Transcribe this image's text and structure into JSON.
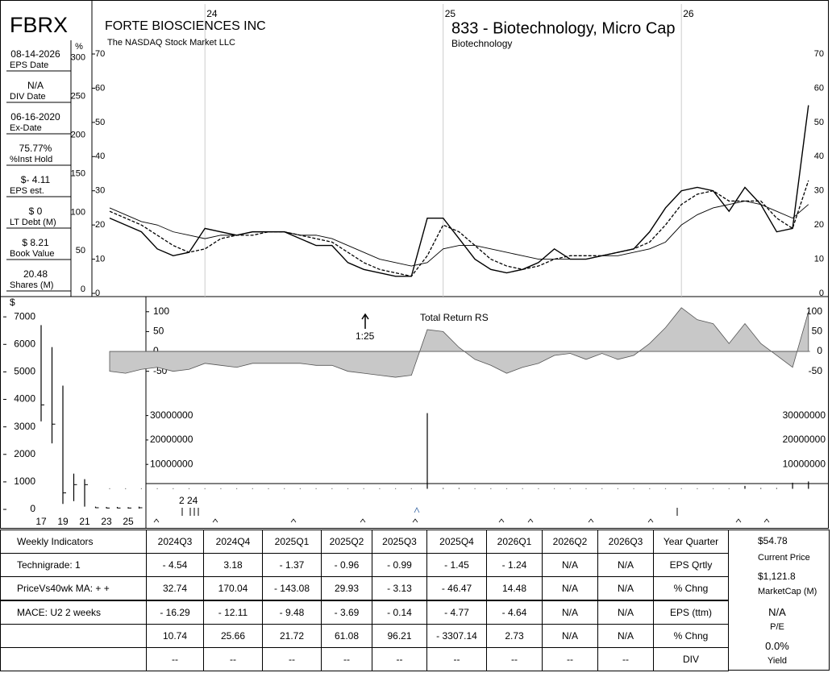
{
  "header": {
    "ticker": "FBRX",
    "company": "FORTE BIOSCIENCES INC",
    "exchange": "The NASDAQ Stock Market LLC",
    "industry": "833 - Biotechnology, Micro Cap",
    "sector": "Biotechnology"
  },
  "sidebar": [
    {
      "value": "08-14-2026",
      "label": "EPS Date"
    },
    {
      "value": "N/A",
      "label": "DIV Date"
    },
    {
      "value": "06-16-2020",
      "label": "Ex-Date"
    },
    {
      "value": "75.77%",
      "label": "%Inst Hold"
    },
    {
      "value": "$- 4.11",
      "label": "EPS est."
    },
    {
      "value": "$ 0",
      "label": "LT Debt (M)"
    },
    {
      "value": "$ 8.21",
      "label": "Book Value"
    },
    {
      "value": "20.48",
      "label": "Shares (M)"
    }
  ],
  "chart_data": [
    {
      "type": "line",
      "categories": [
        null,
        null,
        null,
        null,
        null,
        null,
        "24",
        null,
        null,
        null,
        null,
        null,
        null,
        null,
        null,
        null,
        null,
        null,
        null,
        null,
        null,
        "25",
        null,
        null,
        null,
        null,
        null,
        null,
        null,
        null,
        null,
        null,
        null,
        null,
        null,
        null,
        "26",
        null,
        null,
        null,
        null,
        null,
        null,
        null,
        null
      ],
      "series": [
        {
          "color": "#000000",
          "dash": false,
          "width": 1.4,
          "values": [
            22,
            20,
            18,
            13,
            11,
            12,
            19,
            18,
            17,
            18,
            18,
            18,
            16,
            14,
            14,
            9,
            7,
            6,
            5,
            5,
            22,
            22,
            16,
            10,
            7,
            6,
            7,
            9,
            13,
            10,
            10,
            11,
            12,
            13,
            18,
            25,
            30,
            31,
            30,
            24,
            31,
            26,
            18,
            19,
            55
          ]
        },
        {
          "color": "#000000",
          "dash": true,
          "width": 1.3,
          "values": [
            24,
            22,
            20,
            17,
            14,
            12,
            13,
            16,
            17,
            17,
            18,
            18,
            17,
            16,
            15,
            12,
            9,
            7,
            6,
            5,
            11,
            20,
            18,
            14,
            10,
            8,
            7,
            8,
            10,
            11,
            11,
            11,
            12,
            13,
            15,
            20,
            26,
            29,
            30,
            27,
            27,
            27,
            22,
            19,
            33
          ]
        },
        {
          "color": "#000000",
          "dash": false,
          "width": 0.9,
          "values": [
            25,
            23,
            21,
            20,
            18,
            17,
            16,
            17,
            17,
            18,
            18,
            18,
            17,
            17,
            16,
            14,
            12,
            10,
            9,
            8,
            9,
            13,
            14,
            14,
            13,
            12,
            11,
            10,
            10,
            10,
            10,
            11,
            11,
            12,
            13,
            15,
            20,
            23,
            25,
            26,
            27,
            26,
            24,
            22,
            26
          ]
        }
      ],
      "ylim": [
        0,
        70
      ],
      "yticks": [
        0,
        10,
        20,
        30,
        40,
        50,
        60,
        70
      ],
      "y2label": "%",
      "y2lim": [
        -5,
        305
      ],
      "y2ticks": [
        0,
        50,
        100,
        150,
        200,
        250,
        300
      ]
    },
    {
      "type": "area",
      "title": "Total Return RS",
      "annotation": "1:25",
      "color": "#c8c8c8",
      "values": [
        -50,
        -55,
        -45,
        -40,
        -50,
        -45,
        -30,
        -35,
        -40,
        -30,
        -30,
        -30,
        -30,
        -35,
        -35,
        -50,
        -55,
        -60,
        -65,
        -60,
        55,
        50,
        10,
        -20,
        -35,
        -55,
        -40,
        -30,
        -10,
        -5,
        -20,
        -5,
        -20,
        -10,
        20,
        60,
        110,
        80,
        70,
        20,
        70,
        20,
        -10,
        -40,
        100
      ],
      "ylim": [
        -75,
        130
      ],
      "yticks": [
        -50,
        0,
        50,
        100
      ]
    },
    {
      "type": "bar",
      "color": "#000000",
      "values": [
        200000,
        200000,
        200000,
        200000,
        200000,
        200000,
        200000,
        200000,
        200000,
        200000,
        200000,
        200000,
        200000,
        200000,
        200000,
        200000,
        200000,
        200000,
        200000,
        200000,
        31000000,
        300000,
        300000,
        200000,
        200000,
        200000,
        200000,
        200000,
        200000,
        200000,
        200000,
        200000,
        200000,
        200000,
        200000,
        200000,
        200000,
        200000,
        200000,
        200000,
        1200000,
        300000,
        300000,
        2500000,
        3000000
      ],
      "ylim": [
        0,
        33500000
      ],
      "yticks": [
        10000000,
        20000000,
        30000000
      ]
    },
    {
      "type": "hilo",
      "ylabel": "$",
      "categories": [
        "17",
        null,
        "19",
        null,
        "21",
        null,
        "23",
        null,
        "25",
        null
      ],
      "high": [
        6700,
        5900,
        4500,
        1300,
        1100,
        100,
        90,
        90,
        80,
        100
      ],
      "low": [
        3200,
        2400,
        200,
        300,
        100,
        50,
        40,
        40,
        30,
        30
      ],
      "close": [
        3800,
        3100,
        600,
        900,
        900,
        60,
        50,
        50,
        50,
        60
      ],
      "ylim": [
        -380,
        7620
      ],
      "yticks": [
        0,
        1000,
        2000,
        3000,
        4000,
        5000,
        6000,
        7000
      ]
    }
  ],
  "strip": {
    "annotation": "2 24"
  },
  "table": {
    "header": [
      "Weekly Indicators",
      "2024Q3",
      "2024Q4",
      "2025Q1",
      "2025Q2",
      "2025Q3",
      "2025Q4",
      "2026Q1",
      "2026Q2",
      "2026Q3",
      "Year Quarter"
    ],
    "rows": [
      [
        "Technigrade: 1",
        "- 4.54",
        "3.18",
        "- 1.37",
        "- 0.96",
        "- 0.99",
        "- 1.45",
        "- 1.24",
        "N/A",
        "N/A",
        "EPS Qrtly"
      ],
      [
        "PriceVs40wk MA:  + +",
        "32.74",
        "170.04",
        "- 143.08",
        "29.93",
        "- 3.13",
        "- 46.47",
        "14.48",
        "N/A",
        "N/A",
        "% Chng"
      ],
      [
        "MACE: U2  2 weeks",
        "- 16.29",
        "- 12.11",
        "- 9.48",
        "- 3.69",
        "- 0.14",
        "- 4.77",
        "- 4.64",
        "N/A",
        "N/A",
        "EPS (ttm)"
      ],
      [
        null,
        "10.74",
        "25.66",
        "21.72",
        "61.08",
        "96.21",
        "- 3307.14",
        "2.73",
        "N/A",
        "N/A",
        "% Chng"
      ],
      [
        null,
        "--",
        "--",
        "--",
        "--",
        "--",
        "--",
        "--",
        "--",
        "--",
        "DIV"
      ]
    ]
  },
  "summary": [
    {
      "value": "$54.78",
      "label": "Current Price"
    },
    {
      "value": "$1,121.8",
      "label": "MarketCap (M)"
    },
    {
      "value": "N/A",
      "label": "P/E"
    },
    {
      "value": "0.0%",
      "label": "Yield"
    }
  ]
}
